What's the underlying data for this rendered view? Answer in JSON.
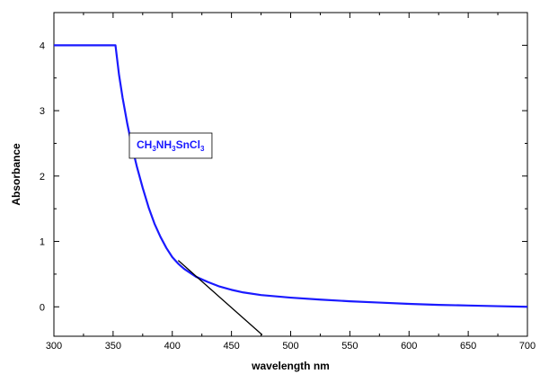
{
  "chart_data": {
    "type": "line",
    "xlabel": "wavelength nm",
    "ylabel": "Absorbance",
    "xlim": [
      300,
      700
    ],
    "ylim": [
      -0.45,
      4.5
    ],
    "x_ticks": [
      300,
      350,
      400,
      450,
      500,
      550,
      600,
      650,
      700
    ],
    "y_ticks": [
      0,
      1,
      2,
      3,
      4
    ],
    "grid": false,
    "legend_position": "middle-left",
    "series": [
      {
        "name": "CH3NH3SnCl3",
        "color": "#1a1aff",
        "x": [
          300,
          352,
          355,
          358,
          362,
          366,
          370,
          375,
          380,
          385,
          390,
          395,
          400,
          405,
          410,
          415,
          420,
          430,
          440,
          450,
          460,
          475,
          500,
          525,
          550,
          575,
          600,
          625,
          650,
          675,
          700
        ],
        "y": [
          4.0,
          4.0,
          3.55,
          3.2,
          2.8,
          2.45,
          2.15,
          1.82,
          1.52,
          1.27,
          1.07,
          0.9,
          0.76,
          0.66,
          0.58,
          0.52,
          0.46,
          0.38,
          0.31,
          0.26,
          0.22,
          0.18,
          0.14,
          0.11,
          0.085,
          0.065,
          0.045,
          0.03,
          0.02,
          0.01,
          0.0
        ]
      }
    ],
    "tangent_line": {
      "color": "#000000",
      "x": [
        405,
        476
      ],
      "y": [
        0.71,
        -0.43
      ]
    },
    "legend": {
      "parts": [
        {
          "text": "CH",
          "sub": false
        },
        {
          "text": "3",
          "sub": true
        },
        {
          "text": "NH",
          "sub": false
        },
        {
          "text": "3",
          "sub": true
        },
        {
          "text": "SnCl",
          "sub": false
        },
        {
          "text": "3",
          "sub": true
        }
      ],
      "color": "#1a1aff"
    }
  }
}
